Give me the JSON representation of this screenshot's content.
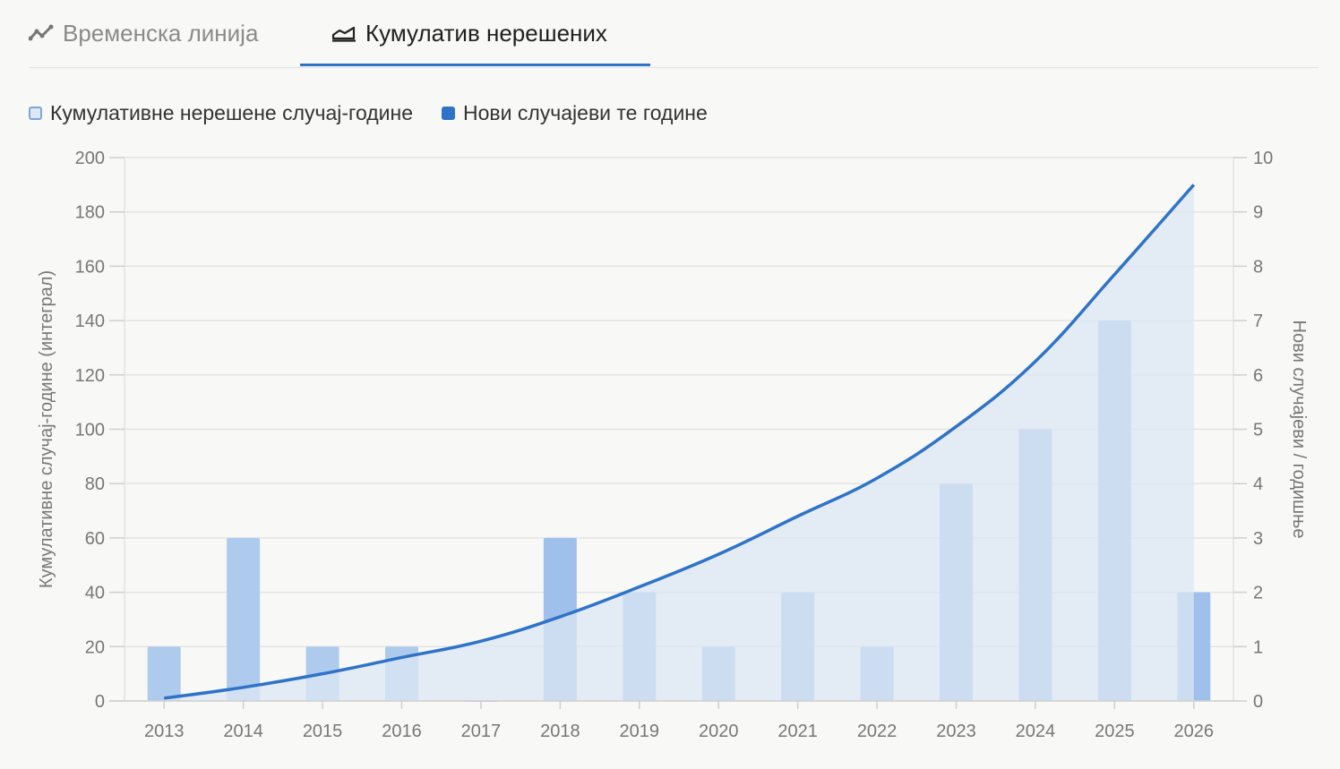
{
  "tabs": [
    {
      "label": "Временска линија",
      "active": false,
      "icon": "trend-line-icon"
    },
    {
      "label": "Кумулатив нерешених",
      "active": true,
      "icon": "area-chart-icon"
    }
  ],
  "colors": {
    "accent": "#2f73c9",
    "area_fill": "#dce7f3",
    "bar_light": "#aecbed",
    "bar": "#9fc0ea",
    "grid": "#e3e3e3"
  },
  "chart_data": {
    "type": "bar+area",
    "categories": [
      "2013",
      "2014",
      "2015",
      "2016",
      "2017",
      "2018",
      "2019",
      "2020",
      "2021",
      "2022",
      "2023",
      "2024",
      "2025",
      "2026"
    ],
    "series": [
      {
        "name": "Кумулативне нерешене случај-године",
        "type": "area",
        "axis": "left",
        "values": [
          1,
          5,
          10,
          16,
          22,
          31,
          42,
          54,
          68,
          82,
          101,
          125,
          157,
          190
        ]
      },
      {
        "name": "Нови случајеви те године",
        "type": "bar",
        "axis": "right",
        "values": [
          1,
          3,
          1,
          1,
          0,
          3,
          2,
          1,
          2,
          1,
          4,
          5,
          7,
          2
        ]
      }
    ],
    "y_left": {
      "label": "Кумулативне случај-године (интеграл)",
      "min": 0,
      "max": 200,
      "ticks": [
        0,
        20,
        40,
        60,
        80,
        100,
        120,
        140,
        160,
        180,
        200
      ]
    },
    "y_right": {
      "label": "Нови случајеви / годишње",
      "min": 0,
      "max": 10,
      "ticks": [
        0,
        1,
        2,
        3,
        4,
        5,
        6,
        7,
        8,
        9,
        10
      ]
    },
    "grid": true,
    "legend": "top-left"
  }
}
